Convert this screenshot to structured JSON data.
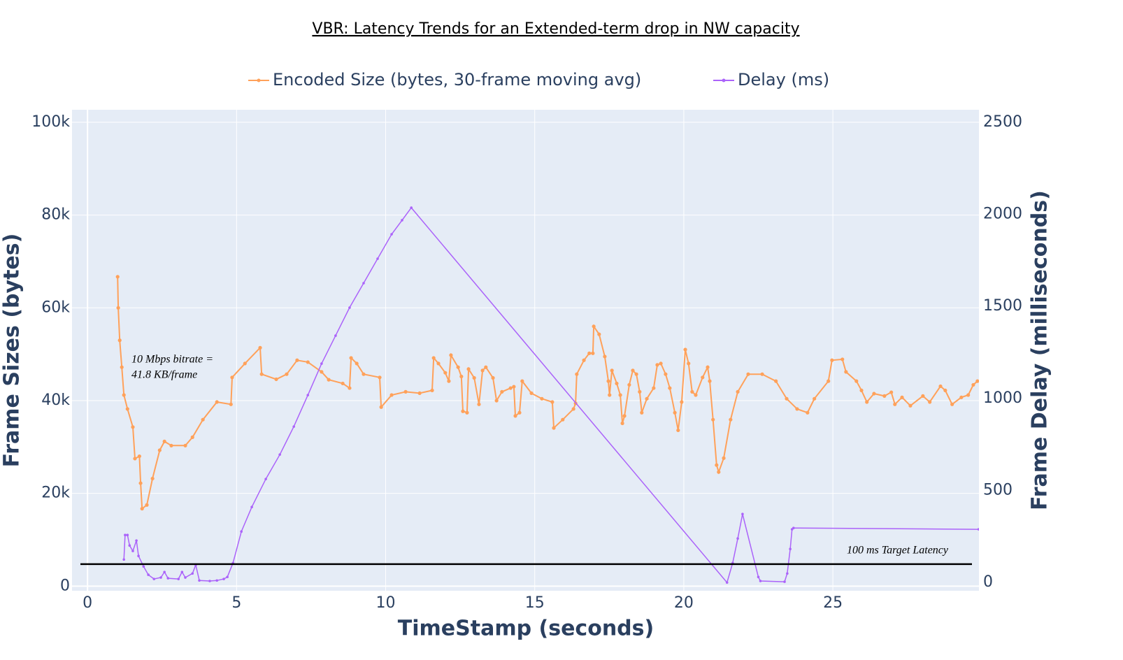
{
  "chart_data": {
    "type": "line",
    "title": "VBR: Latency Trends for an Extended-term drop in NW capacity",
    "x_label": "TimeStamp (seconds)",
    "y_label": "Frame Sizes (bytes)",
    "y2_label": "Frame Delay (milliseconds)",
    "xlim": [
      -0.52,
      29.9
    ],
    "ylim": [
      -1000,
      102700
    ],
    "y2lim": [
      -45,
      2568
    ],
    "xticks": [
      0,
      5,
      10,
      15,
      20,
      25
    ],
    "yticks": [
      0,
      {
        "value": 20000,
        "label": "20k"
      },
      {
        "value": 40000,
        "label": "40k"
      },
      {
        "value": 60000,
        "label": "60k"
      },
      {
        "value": 80000,
        "label": "80k"
      },
      {
        "value": 100000,
        "label": "100k"
      }
    ],
    "y2ticks": [
      0,
      500,
      1000,
      1500,
      2000,
      2500
    ],
    "grid": true,
    "legend": "top",
    "target_line": {
      "value": 100,
      "axis": "y2",
      "color": "#000000"
    },
    "annotations": [
      "10 Mbps bitrate =",
      "41.8 KB/frame",
      "100 ms Target Latency"
    ],
    "series": [
      {
        "name": "Encoded Size (bytes, 30-frame moving avg)",
        "color": "#FFA15A",
        "axis": "y",
        "x": [
          1.01,
          1.03,
          1.08,
          1.15,
          1.22,
          1.34,
          1.52,
          1.59,
          1.74,
          1.78,
          1.83,
          1.99,
          2.18,
          2.42,
          2.58,
          2.81,
          3.28,
          3.52,
          3.87,
          4.34,
          4.81,
          4.85,
          5.28,
          5.79,
          5.84,
          6.33,
          6.68,
          7.03,
          7.39,
          7.85,
          8.09,
          8.56,
          8.79,
          8.84,
          9.03,
          9.26,
          9.8,
          9.85,
          10.2,
          10.67,
          11.14,
          11.56,
          11.61,
          11.77,
          12.0,
          12.12,
          12.19,
          12.43,
          12.54,
          12.59,
          12.73,
          12.78,
          12.97,
          13.13,
          13.25,
          13.36,
          13.6,
          13.72,
          13.9,
          14.19,
          14.3,
          14.35,
          14.49,
          14.58,
          14.89,
          15.24,
          15.59,
          15.64,
          15.94,
          16.3,
          16.37,
          16.41,
          16.65,
          16.83,
          16.95,
          16.98,
          17.16,
          17.35,
          17.47,
          17.51,
          17.59,
          17.75,
          17.87,
          17.94,
          18.01,
          18.17,
          18.29,
          18.41,
          18.52,
          18.59,
          18.76,
          18.99,
          19.11,
          19.23,
          19.39,
          19.53,
          19.7,
          19.81,
          19.93,
          20.05,
          20.16,
          20.28,
          20.4,
          20.63,
          20.8,
          20.87,
          20.98,
          21.1,
          21.17,
          21.34,
          21.57,
          21.81,
          22.16,
          22.63,
          23.09,
          23.45,
          23.8,
          24.15,
          24.38,
          24.85,
          24.97,
          25.32,
          25.44,
          25.79,
          25.96,
          26.14,
          26.38,
          26.73,
          26.96,
          27.08,
          27.32,
          27.6,
          28.02,
          28.25,
          28.61,
          28.77,
          29.0,
          29.31,
          29.54,
          29.71,
          29.85
        ],
        "values": [
          66700,
          60000,
          53000,
          47200,
          41200,
          38200,
          34300,
          27500,
          28000,
          22200,
          16700,
          17500,
          23200,
          29300,
          31200,
          30300,
          30300,
          32100,
          35900,
          39700,
          39200,
          45000,
          48000,
          51400,
          45700,
          44600,
          45700,
          48700,
          48300,
          46200,
          44500,
          43700,
          42700,
          49200,
          48000,
          45700,
          45000,
          38600,
          41200,
          41900,
          41600,
          42200,
          49200,
          48000,
          46000,
          44200,
          49800,
          47200,
          45200,
          37700,
          37400,
          46800,
          44900,
          39200,
          46500,
          47200,
          44900,
          40000,
          41900,
          42700,
          43000,
          36700,
          37400,
          44200,
          41600,
          40400,
          39700,
          34100,
          35900,
          38200,
          39400,
          45700,
          48700,
          50200,
          50200,
          56000,
          54300,
          49500,
          44200,
          41200,
          46500,
          43700,
          41200,
          35100,
          36700,
          43400,
          46500,
          45700,
          41900,
          37400,
          40400,
          42700,
          47700,
          48000,
          45700,
          42700,
          37400,
          33600,
          39700,
          51000,
          48000,
          41900,
          41200,
          45000,
          47200,
          44200,
          35900,
          26100,
          24600,
          27600,
          35900,
          41900,
          45700,
          45700,
          44200,
          40400,
          38200,
          37400,
          40400,
          44200,
          48700,
          48900,
          46200,
          44200,
          42200,
          39700,
          41500,
          41000,
          41800,
          39200,
          40700,
          38900,
          41000,
          39700,
          43100,
          42200,
          39200,
          40700,
          41200,
          43400,
          44200
        ]
      },
      {
        "name": "Delay (ms)",
        "color": "#AB63FA",
        "axis": "y2",
        "x": [
          1.22,
          1.26,
          1.34,
          1.41,
          1.52,
          1.64,
          1.71,
          1.88,
          2.04,
          2.23,
          2.46,
          2.58,
          2.7,
          3.05,
          3.17,
          3.28,
          3.52,
          3.63,
          3.75,
          4.1,
          4.34,
          4.57,
          4.69,
          4.88,
          5.16,
          5.51,
          5.98,
          6.45,
          6.92,
          7.39,
          7.85,
          8.32,
          8.79,
          9.26,
          9.73,
          10.2,
          10.55,
          10.86,
          21.45,
          21.64,
          21.81,
          21.97,
          22.5,
          22.57,
          23.38,
          23.47,
          23.57,
          23.63,
          23.68,
          29.89
        ],
        "values": [
          125,
          258,
          258,
          201,
          171,
          228,
          144,
          87,
          42,
          19,
          27,
          57,
          23,
          19,
          57,
          27,
          49,
          95,
          11,
          8,
          11,
          19,
          30,
          106,
          277,
          410,
          562,
          695,
          847,
          1018,
          1189,
          1341,
          1493,
          1626,
          1759,
          1892,
          1968,
          2036,
          0,
          106,
          239,
          372,
          30,
          8,
          4,
          49,
          182,
          289,
          296,
          289
        ]
      }
    ]
  }
}
